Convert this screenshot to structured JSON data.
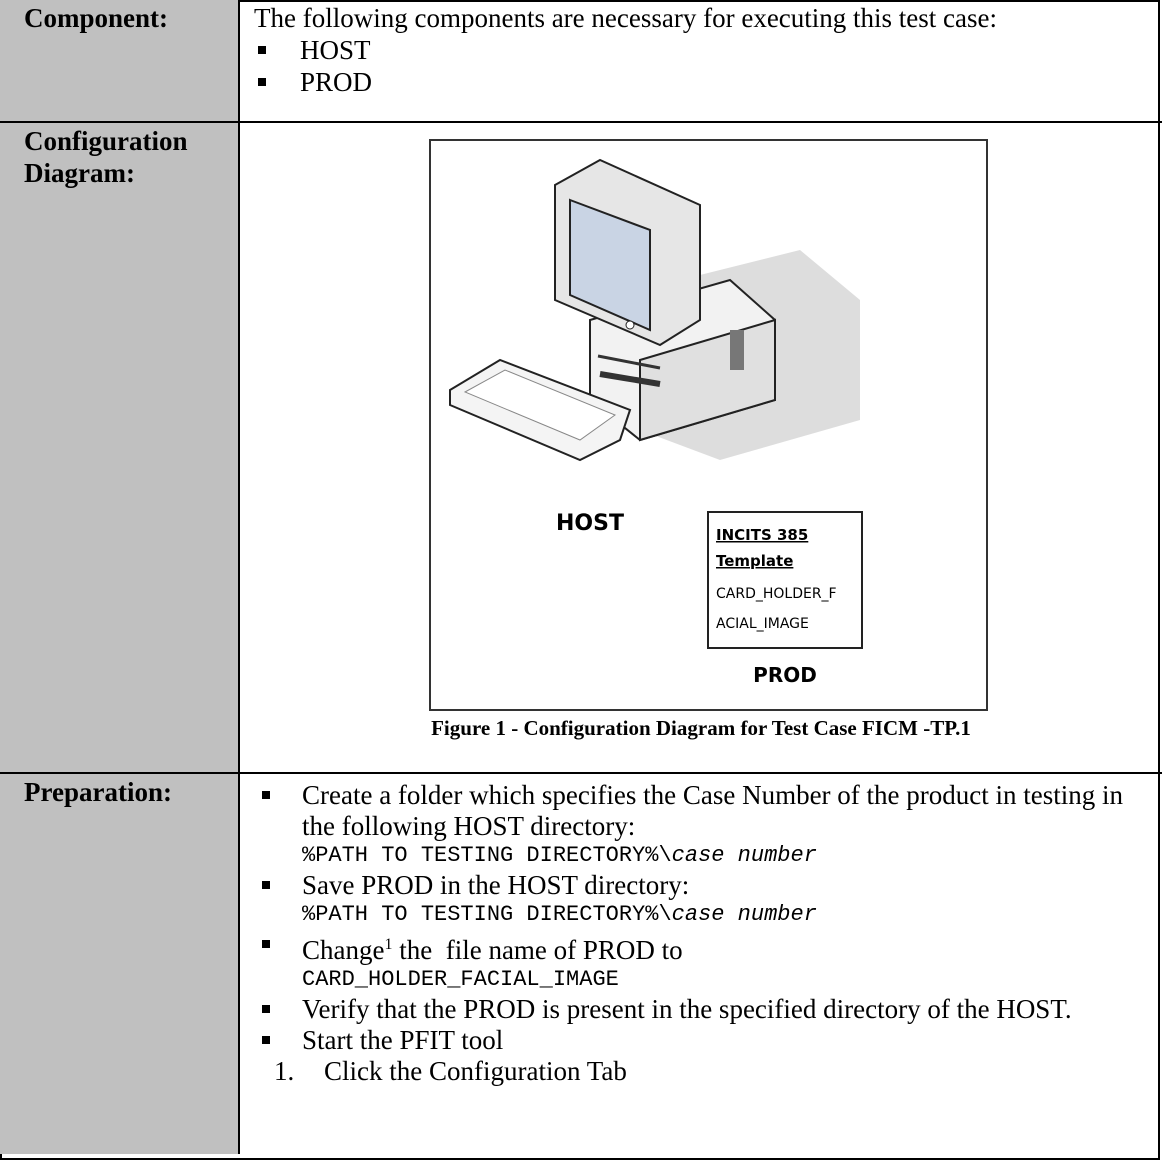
{
  "component": {
    "label": "Component:",
    "intro": "The following components are necessary for executing this test case:",
    "items": [
      "HOST",
      "PROD"
    ]
  },
  "configuration": {
    "label_lines": [
      "Configuration",
      "Diagram:"
    ],
    "host_label": "HOST",
    "prod_box": [
      "INCITS 385",
      "Template",
      "CARD_HOLDER_F",
      "ACIAL_IMAGE"
    ],
    "prod_label": "PROD",
    "caption": "Figure 1 - Configuration Diagram for Test Case FICM -TP.1"
  },
  "preparation": {
    "label": "Preparation:",
    "bullets": [
      {
        "text": "Create a folder which specifies the Case Number of the product in testing in the following HOST directory:",
        "code": "%PATH TO TESTING DIRECTORY%\\",
        "code_italic": "case number"
      },
      {
        "text": "Save PROD in the HOST directory:",
        "code": "%PATH TO TESTING DIRECTORY%\\",
        "code_italic": "case number"
      },
      {
        "text": "Change",
        "sup": "1",
        "text2": " the  file name of PROD to",
        "code": "CARD_HOLDER_FACIAL_IMAGE"
      },
      {
        "text": "Verify that the PROD is present in the specified directory of the HOST."
      },
      {
        "text": "Start the PFIT tool"
      }
    ],
    "steps": [
      {
        "number": "1.",
        "text": "Click the Configuration Tab"
      }
    ]
  }
}
